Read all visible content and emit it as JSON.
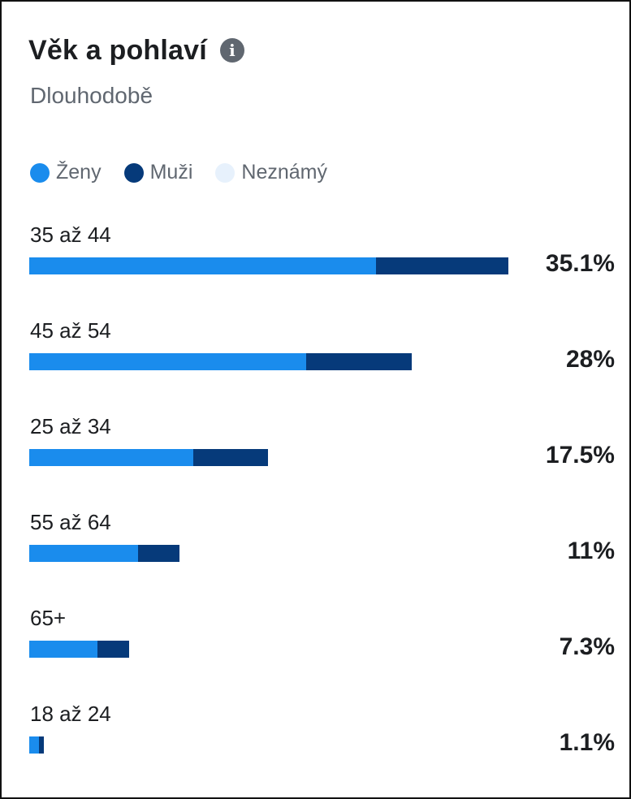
{
  "header": {
    "title": "Věk a pohlaví",
    "subtitle": "Dlouhodobě",
    "info_icon": "info-icon"
  },
  "colors": {
    "zeny": "#1a8ced",
    "muzi": "#063a7a",
    "neznamy": "#e7f1fc"
  },
  "chart_data": {
    "type": "bar",
    "orientation": "horizontal",
    "stacked": true,
    "title": "Věk a pohlaví",
    "subtitle": "Dlouhodobě",
    "legend": [
      "Ženy",
      "Muži",
      "Neznámý"
    ],
    "legend_position": "top-left",
    "grid": false,
    "categories": [
      "35 až 44",
      "45 až 54",
      "25 až 34",
      "55 až 64",
      "65+",
      "18 až 24"
    ],
    "totals": [
      35.1,
      28,
      17.5,
      11,
      7.3,
      1.1
    ],
    "total_labels": [
      "35.1%",
      "28%",
      "17.5%",
      "11%",
      "7.3%",
      "1.1%"
    ],
    "series": [
      {
        "name": "Ženy",
        "values": [
          25.4,
          20.3,
          12.0,
          8.0,
          5.0,
          0.7
        ]
      },
      {
        "name": "Muži",
        "values": [
          9.7,
          7.7,
          5.5,
          3.0,
          2.3,
          0.4
        ]
      },
      {
        "name": "Neznámý",
        "values": [
          0,
          0,
          0,
          0,
          0,
          0
        ]
      }
    ]
  }
}
